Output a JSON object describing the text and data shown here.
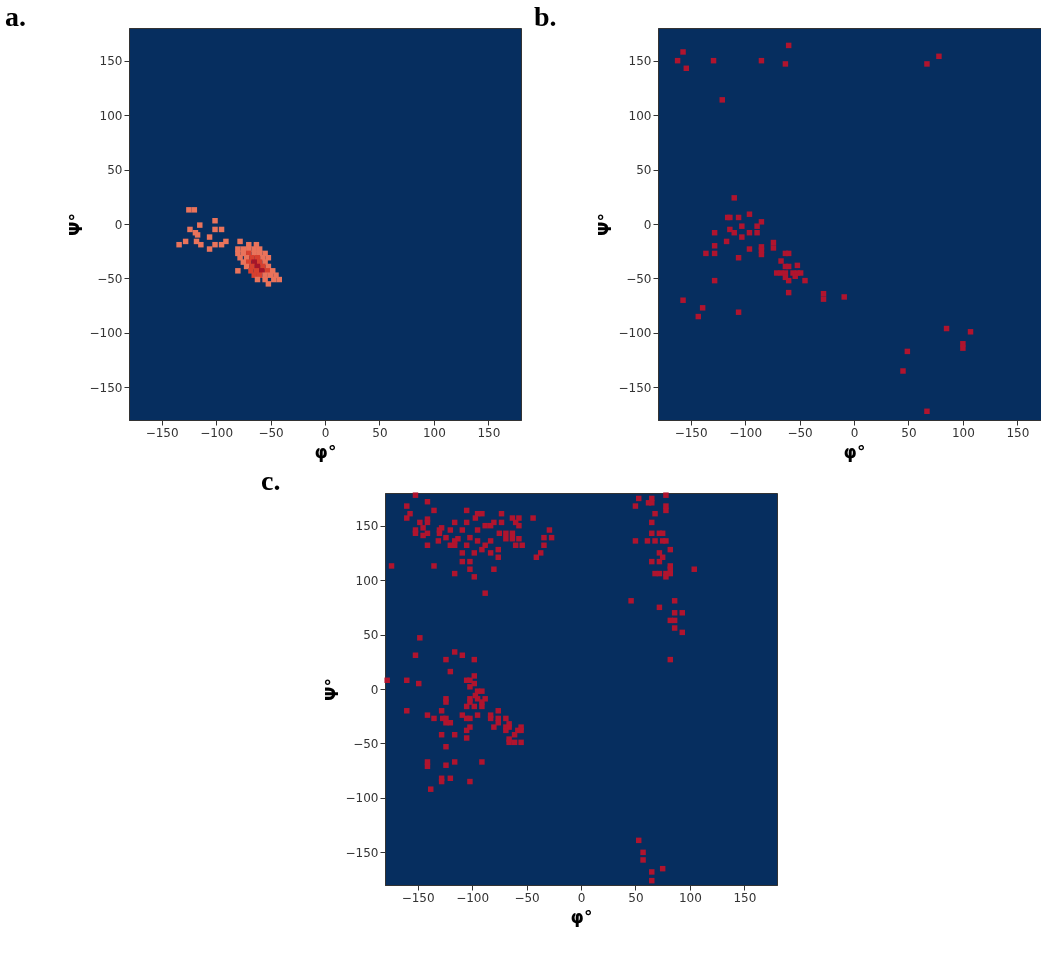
{
  "chart_data": [
    {
      "type": "scatter",
      "title": "a.",
      "xlabel": "φ°",
      "ylabel": "Ψ°",
      "xlim": [
        -180,
        180
      ],
      "ylim": [
        -180,
        180
      ],
      "xticks": [
        {
          "value": -150,
          "label": "−150"
        },
        {
          "value": -100,
          "label": "−100"
        },
        {
          "value": -50,
          "label": "−50"
        },
        0,
        50,
        100,
        150
      ],
      "yticks": [
        {
          "value": -150,
          "label": "−150"
        },
        {
          "value": -100,
          "label": "−100"
        },
        {
          "value": -50,
          "label": "−50"
        },
        0,
        50,
        100,
        150
      ],
      "marker": "square",
      "series": [
        {
          "x": [
            -125,
            -120,
            -115,
            -101,
            -101,
            -95,
            -124,
            -119,
            -117,
            -106,
            -128,
            -118,
            -134,
            -114,
            -101,
            -95,
            -91,
            -106,
            -78,
            -70,
            -63,
            -80,
            -75,
            -70,
            -65,
            -60,
            -80,
            -75,
            -70,
            -65,
            -60,
            -55,
            -78,
            -72,
            -67,
            -62,
            -57,
            -52,
            -75,
            -70,
            -65,
            -60,
            -55,
            -72,
            -67,
            -62,
            -57,
            -52,
            -80,
            -68,
            -63,
            -58,
            -53,
            -48,
            -65,
            -60,
            -55,
            -50,
            -45,
            -62,
            -55,
            -47,
            -42,
            -52
          ],
          "values": [
            13,
            13,
            -1,
            3,
            -5,
            -5,
            -5,
            -8,
            -10,
            -12,
            -16,
            -16,
            -19,
            -19,
            -19,
            -19,
            -16,
            -23,
            -16,
            -19,
            -19,
            -23,
            -23,
            -23,
            -23,
            -23,
            -27,
            -27,
            -27,
            -27,
            -27,
            -27,
            -31,
            -31,
            -31,
            -31,
            -31,
            -31,
            -35,
            -35,
            -35,
            -35,
            -35,
            -39,
            -39,
            -39,
            -39,
            -39,
            -43,
            -43,
            -43,
            -43,
            -43,
            -43,
            -47,
            -47,
            -47,
            -47,
            -47,
            -51,
            -51,
            -51,
            -51,
            -55
          ],
          "colors": [
            "#e9735b",
            "#e9735b",
            "#e9735b",
            "#e9735b",
            "#e9735b",
            "#e9735b",
            "#e9735b",
            "#e9735b",
            "#e9735b",
            "#e9735b",
            "#e9735b",
            "#e9735b",
            "#e9735b",
            "#e9735b",
            "#e9735b",
            "#e9735b",
            "#e9735b",
            "#e9735b",
            "#e9735b",
            "#e9735b",
            "#e9735b",
            "#e9735b",
            "#e9735b",
            "#e9735b",
            "#e9735b",
            "#e9735b",
            "#e9735b",
            "#e9735b",
            "#d7402f",
            "#e9735b",
            "#e9735b",
            "#e9735b",
            "#e9735b",
            "#e9735b",
            "#d7402f",
            "#d7402f",
            "#e9735b",
            "#e9735b",
            "#e9735b",
            "#d7402f",
            "#a5152a",
            "#d7402f",
            "#e9735b",
            "#e9735b",
            "#d7402f",
            "#a5152a",
            "#d7402f",
            "#e9735b",
            "#e9735b",
            "#d7402f",
            "#d7402f",
            "#a5152a",
            "#d7402f",
            "#e9735b",
            "#d7402f",
            "#d7402f",
            "#e9735b",
            "#e9735b",
            "#e9735b",
            "#e9735b",
            "#e9735b",
            "#e9735b",
            "#e9735b",
            "#e9735b"
          ]
        }
      ]
    },
    {
      "type": "scatter",
      "title": "b.",
      "xlabel": "φ°",
      "ylabel": "Ψ°",
      "xlim": [
        -180,
        180
      ],
      "ylim": [
        -180,
        180
      ],
      "xticks": [
        {
          "value": -150,
          "label": "−150"
        },
        {
          "value": -100,
          "label": "−100"
        },
        {
          "value": -50,
          "label": "−50"
        },
        0,
        50,
        100,
        150
      ],
      "yticks": [
        {
          "value": -150,
          "label": "−150"
        },
        {
          "value": -100,
          "label": "−100"
        },
        {
          "value": -50,
          "label": "−50"
        },
        0,
        50,
        100,
        150
      ],
      "marker": "square",
      "series": [
        {
          "color": "#b0142e",
          "x": [
            -157,
            -162,
            -154,
            -129,
            -85,
            -63,
            -60,
            -121,
            67,
            78,
            -110,
            -116,
            -114,
            -106,
            -96,
            -85,
            -89,
            -103,
            -114,
            -110,
            -96,
            -89,
            -128,
            -103,
            -117,
            -128,
            -136,
            -128,
            -106,
            -96,
            -85,
            -85,
            -85,
            -74,
            -74,
            -63,
            -60,
            -67,
            -63,
            -60,
            -52,
            -71,
            -67,
            -63,
            -56,
            -52,
            -49,
            -63,
            -54,
            -60,
            -45,
            -60,
            -128,
            -28,
            -28,
            -9,
            -157,
            -139,
            -143,
            -106,
            85,
            107,
            100,
            100,
            49,
            45,
            67
          ],
          "values": [
            158,
            150,
            143,
            150,
            150,
            147,
            164,
            114,
            147,
            154,
            24,
            6,
            6,
            6,
            9,
            2,
            -2,
            -2,
            -5,
            -8,
            -8,
            -8,
            -8,
            -12,
            -16,
            -20,
            -27,
            -27,
            -31,
            -23,
            -21,
            -24,
            -28,
            -17,
            -22,
            -27,
            -27,
            -34,
            -39,
            -39,
            -38,
            -45,
            -45,
            -45,
            -45,
            -45,
            -45,
            -49,
            -48,
            -52,
            -52,
            -63,
            -52,
            -64,
            -69,
            -67,
            -70,
            -77,
            -85,
            -81,
            -96,
            -99,
            -110,
            -114,
            -117,
            -135,
            -172
          ]
        }
      ]
    },
    {
      "type": "scatter",
      "title": "c.",
      "xlabel": "φ°",
      "ylabel": "Ψ°",
      "xlim": [
        -180,
        180
      ],
      "ylim": [
        -180,
        180
      ],
      "xticks": [
        {
          "value": -150,
          "label": "−150"
        },
        {
          "value": -100,
          "label": "−100"
        },
        {
          "value": -50,
          "label": "−50"
        },
        0,
        50,
        100,
        150
      ],
      "yticks": [
        {
          "value": -150,
          "label": "−150"
        },
        {
          "value": -100,
          "label": "−100"
        },
        {
          "value": -50,
          "label": "−50"
        },
        0,
        50,
        100,
        150
      ],
      "marker": "square",
      "series": [
        {
          "color": "#b0142e",
          "x": [
            -152,
            -160,
            -141,
            -157,
            -160,
            -135,
            -105,
            -148,
            -141,
            -141,
            -152,
            -152,
            -145,
            -145,
            -141,
            -130,
            -130,
            -128,
            -120,
            -116,
            -109,
            -105,
            -97,
            -95,
            -91,
            -95,
            -88,
            -83,
            -80,
            -73,
            -73,
            -63,
            -57,
            -60,
            -57,
            -44,
            -75,
            -69,
            -63,
            -69,
            -63,
            -57,
            -60,
            -54,
            -29,
            -34,
            -27,
            -34,
            -37,
            -41,
            -141,
            -131,
            -124,
            -116,
            -113,
            -120,
            -116,
            -105,
            -102,
            -95,
            -88,
            -83,
            -91,
            -76,
            -98,
            -109,
            -83,
            -76,
            -109,
            -102,
            -135,
            -174,
            -102,
            -80,
            -116,
            -98,
            -88,
            53,
            62,
            65,
            65,
            78,
            50,
            78,
            78,
            68,
            65,
            65,
            72,
            75,
            50,
            61,
            68,
            75,
            78,
            82,
            72,
            75,
            65,
            72,
            82,
            82,
            82,
            78,
            72,
            68,
            78,
            104,
            46,
            72,
            86,
            86,
            93,
            82,
            86,
            86,
            93,
            82,
            -148,
            -152,
            -116,
            -109,
            -124,
            -98,
            -120,
            -178,
            -160,
            -149,
            -98,
            -105,
            -102,
            -98,
            -102,
            -95,
            -91,
            -97,
            -95,
            -88,
            -102,
            -102,
            -91,
            -91,
            -124,
            -124,
            -105,
            -98,
            -160,
            -128,
            -141,
            -135,
            -127,
            -124,
            -124,
            -120,
            -109,
            -105,
            -102,
            -95,
            -83,
            -83,
            -76,
            -76,
            -76,
            -80,
            -102,
            -105,
            -69,
            -69,
            -69,
            -66,
            -66,
            -55,
            -55,
            -58,
            -61,
            -66,
            -61,
            -55,
            -66,
            -128,
            -116,
            -105,
            -124,
            -141,
            -141,
            -124,
            -116,
            -91,
            -128,
            -128,
            -120,
            -102,
            -138,
            53,
            57,
            57,
            65,
            75,
            65
          ],
          "values": [
            178,
            168,
            172,
            161,
            157,
            164,
            164,
            153,
            156,
            153,
            146,
            143,
            148,
            141,
            143,
            146,
            143,
            148,
            146,
            153,
            146,
            153,
            157,
            161,
            161,
            146,
            150,
            150,
            153,
            161,
            153,
            157,
            157,
            153,
            150,
            157,
            143,
            143,
            143,
            138,
            138,
            138,
            132,
            132,
            146,
            139,
            139,
            132,
            125,
            121,
            132,
            136,
            139,
            136,
            138,
            132,
            132,
            132,
            139,
            136,
            132,
            136,
            128,
            128,
            125,
            125,
            125,
            121,
            117,
            117,
            113,
            113,
            110,
            110,
            106,
            103,
            88,
            175,
            171,
            171,
            175,
            178,
            168,
            168,
            164,
            161,
            153,
            143,
            143,
            143,
            136,
            136,
            136,
            136,
            136,
            128,
            125,
            121,
            117,
            117,
            113,
            110,
            106,
            106,
            106,
            106,
            103,
            110,
            81,
            75,
            81,
            70,
            70,
            63,
            63,
            56,
            52,
            27,
            47,
            31,
            34,
            31,
            27,
            27,
            16,
            8,
            8,
            5,
            12,
            8,
            8,
            5,
            2,
            -2,
            -2,
            -6,
            -9,
            -9,
            -9,
            -12,
            -12,
            -16,
            -9,
            -12,
            -16,
            -16,
            -20,
            -20,
            -24,
            -27,
            -27,
            -27,
            -31,
            -31,
            -24,
            -27,
            -27,
            -24,
            -24,
            -27,
            -20,
            -27,
            -31,
            -35,
            -35,
            -38,
            -27,
            -35,
            -38,
            -32,
            -35,
            -35,
            -38,
            -38,
            -42,
            -46,
            -49,
            -49,
            -49,
            -42,
            -42,
            -45,
            -53,
            -67,
            -71,
            -70,
            -67,
            -67,
            -82,
            -85,
            -82,
            -85,
            -92,
            -139,
            -150,
            -157,
            -168,
            -165,
            -176
          ]
        }
      ]
    }
  ]
}
